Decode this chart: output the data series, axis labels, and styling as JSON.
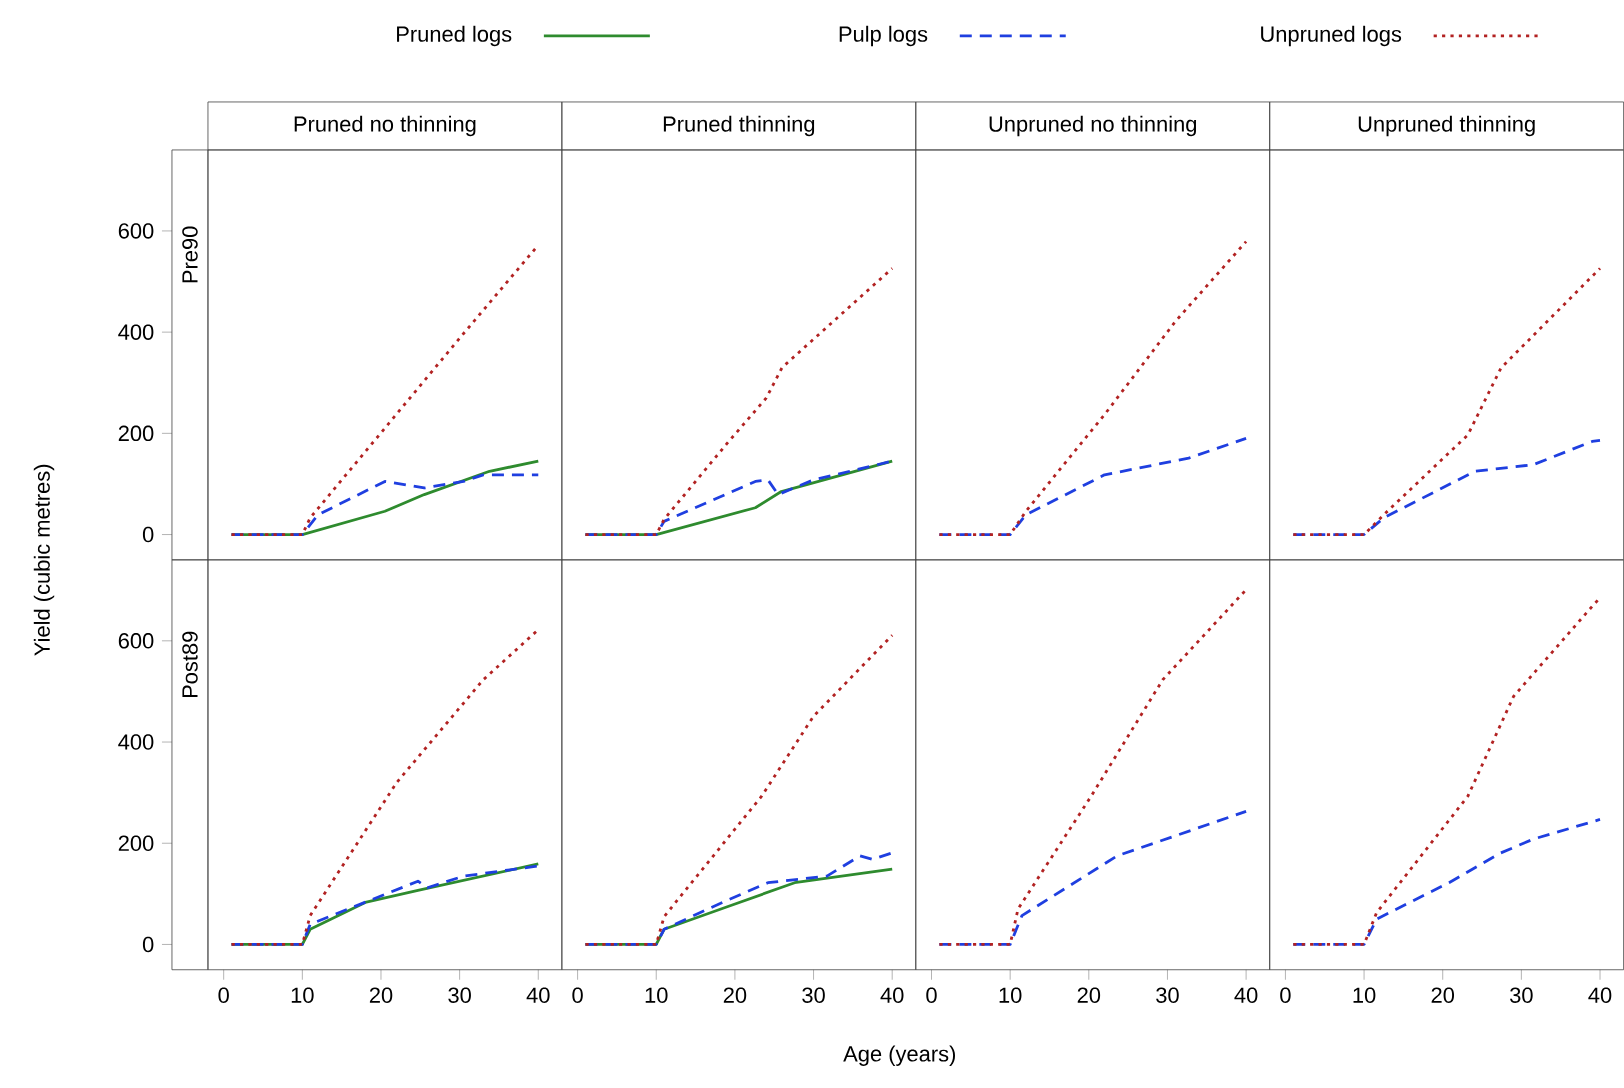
{
  "chart_data": [
    {
      "type": "line",
      "title": "Pruned no thinning",
      "ylabel": "Yield (cubic metres)",
      "annotations": [
        "Pre90"
      ],
      "legend": "top",
      "xlim": [
        -2,
        43
      ],
      "ylim": [
        -50,
        760
      ],
      "xticks": [
        0,
        10,
        20,
        30,
        40
      ],
      "yticks": [
        0,
        200,
        400,
        600
      ],
      "tick_labels": "y",
      "marker": "none",
      "series": [
        {
          "name": "Pruned logs",
          "color": "#2e8b2e",
          "line_style": "solid",
          "x": [
            1,
            10,
            20.5,
            25.5,
            33.8,
            40
          ],
          "values": [
            0,
            0,
            46,
            79,
            125,
            145
          ]
        },
        {
          "name": "Pulp logs",
          "color": "#1f3fe0",
          "line_style": "dashed",
          "x": [
            1,
            10,
            12,
            20.5,
            25.5,
            30.5,
            33,
            40
          ],
          "values": [
            0,
            0,
            39,
            105,
            92,
            105,
            118,
            118
          ]
        },
        {
          "name": "Unpruned logs",
          "color": "#b22222",
          "line_style": "dotted",
          "x": [
            1,
            10,
            11,
            20,
            30,
            40
          ],
          "values": [
            0,
            0,
            33,
            201,
            388,
            572
          ]
        }
      ]
    },
    {
      "type": "line",
      "title": "Pruned thinning",
      "xlim": [
        -2,
        43
      ],
      "ylim": [
        -50,
        760
      ],
      "xticks": [
        0,
        10,
        20,
        30,
        40
      ],
      "yticks": [
        0,
        200,
        400,
        600
      ],
      "tick_labels": false,
      "marker": "none",
      "series": [
        {
          "color": "#2e8b2e",
          "line_style": "solid",
          "x": [
            1,
            10,
            22.6,
            25.9,
            40
          ],
          "values": [
            0,
            0,
            53,
            85,
            145
          ]
        },
        {
          "color": "#1f3fe0",
          "line_style": "dashed",
          "x": [
            1,
            10,
            11,
            22.6,
            24.2,
            25.5,
            30,
            40
          ],
          "values": [
            0,
            0,
            26,
            105,
            108,
            79,
            108,
            145
          ]
        },
        {
          "color": "#b22222",
          "line_style": "dotted",
          "x": [
            1,
            10,
            11,
            19,
            24,
            26,
            40
          ],
          "values": [
            0,
            0,
            30,
            180,
            270,
            330,
            526
          ]
        }
      ]
    },
    {
      "type": "line",
      "title": "Unpruned no thinning",
      "xlim": [
        -2,
        43
      ],
      "ylim": [
        -50,
        760
      ],
      "xticks": [
        0,
        10,
        20,
        30,
        40
      ],
      "yticks": [
        0,
        200,
        400,
        600
      ],
      "tick_labels": false,
      "marker": "none",
      "series": [
        {
          "color": "#1f3fe0",
          "line_style": "dashed",
          "x": [
            1,
            10,
            12,
            22,
            32.7,
            40
          ],
          "values": [
            0,
            0,
            39,
            118,
            151,
            190
          ]
        },
        {
          "color": "#b22222",
          "line_style": "dotted",
          "x": [
            1,
            10,
            12,
            22,
            31,
            40
          ],
          "values": [
            0,
            0,
            46,
            237,
            421,
            579
          ]
        }
      ]
    },
    {
      "type": "line",
      "title": "Unpruned thinning",
      "xlim": [
        -2,
        43
      ],
      "ylim": [
        -50,
        760
      ],
      "xticks": [
        0,
        10,
        20,
        30,
        40
      ],
      "yticks": [
        0,
        200,
        400,
        600
      ],
      "tick_labels": false,
      "marker": "none",
      "series": [
        {
          "color": "#1f3fe0",
          "line_style": "dashed",
          "x": [
            1,
            10,
            12.5,
            24.1,
            31.5,
            39,
            40
          ],
          "values": [
            0,
            0,
            33,
            125,
            138,
            184,
            186
          ]
        },
        {
          "color": "#b22222",
          "line_style": "dotted",
          "x": [
            1,
            10,
            12.5,
            23.2,
            27.4,
            40
          ],
          "values": [
            0,
            0,
            39,
            197,
            329,
            526
          ]
        }
      ]
    },
    {
      "type": "line",
      "annotations": [
        "Post89"
      ],
      "xlim": [
        -2,
        43
      ],
      "ylim": [
        -50,
        760
      ],
      "xticks": [
        0,
        10,
        20,
        30,
        40
      ],
      "yticks": [
        0,
        200,
        400,
        600
      ],
      "marker": "none",
      "series": [
        {
          "color": "#2e8b2e",
          "line_style": "solid",
          "x": [
            1,
            10,
            11,
            18,
            24.7,
            40
          ],
          "values": [
            0,
            0,
            30,
            83,
            107,
            159
          ]
        },
        {
          "color": "#1f3fe0",
          "line_style": "dashed",
          "x": [
            1,
            10,
            11,
            24.7,
            25.9,
            30.5,
            40
          ],
          "values": [
            0,
            0,
            40,
            125,
            112,
            135,
            155
          ]
        },
        {
          "color": "#b22222",
          "line_style": "dotted",
          "x": [
            1,
            10,
            11,
            22,
            33,
            40
          ],
          "values": [
            0,
            0,
            57,
            320,
            523,
            622
          ]
        }
      ]
    },
    {
      "type": "line",
      "xlabel": "Age (years)",
      "xlim": [
        -2,
        43
      ],
      "ylim": [
        -50,
        760
      ],
      "xticks": [
        0,
        10,
        20,
        30,
        40
      ],
      "yticks": [
        0,
        200,
        400,
        600
      ],
      "tick_labels": "x",
      "marker": "none",
      "series": [
        {
          "color": "#2e8b2e",
          "line_style": "solid",
          "x": [
            1,
            10,
            11,
            19.3,
            27.6,
            40
          ],
          "values": [
            0,
            0,
            30,
            76,
            122,
            149
          ]
        },
        {
          "color": "#1f3fe0",
          "line_style": "dashed",
          "x": [
            1,
            10,
            11,
            18.4,
            24.2,
            31.7,
            35.9,
            37.5,
            40
          ],
          "values": [
            0,
            0,
            30,
            83,
            122,
            135,
            175,
            168,
            181
          ]
        },
        {
          "color": "#b22222",
          "line_style": "dotted",
          "x": [
            1,
            10,
            11,
            23.4,
            30,
            40
          ],
          "values": [
            0,
            0,
            55,
            293,
            451,
            611
          ]
        }
      ]
    },
    {
      "type": "line",
      "xlim": [
        -2,
        43
      ],
      "ylim": [
        -50,
        760
      ],
      "xticks": [
        0,
        10,
        20,
        30,
        40
      ],
      "yticks": [
        0,
        200,
        400,
        600
      ],
      "tick_labels": "x",
      "marker": "none",
      "series": [
        {
          "color": "#1f3fe0",
          "line_style": "dashed",
          "x": [
            1,
            10,
            11.5,
            23.6,
            40
          ],
          "values": [
            0,
            0,
            57,
            175,
            263
          ]
        },
        {
          "color": "#b22222",
          "line_style": "dotted",
          "x": [
            1,
            10,
            11,
            20.3,
            29.4,
            40
          ],
          "values": [
            0,
            0,
            70,
            293,
            523,
            701
          ]
        }
      ]
    },
    {
      "type": "line",
      "xlim": [
        -2,
        43
      ],
      "ylim": [
        -50,
        760
      ],
      "xticks": [
        0,
        10,
        20,
        30,
        40
      ],
      "yticks": [
        0,
        200,
        400,
        600
      ],
      "tick_labels": "x",
      "marker": "none",
      "series": [
        {
          "color": "#1f3fe0",
          "line_style": "dashed",
          "x": [
            1,
            10,
            11.6,
            20.8,
            27.4,
            31.5,
            40
          ],
          "values": [
            0,
            0,
            50,
            122,
            181,
            208,
            247
          ]
        },
        {
          "color": "#b22222",
          "line_style": "dotted",
          "x": [
            1,
            10,
            11.6,
            23.2,
            29,
            39,
            40
          ],
          "values": [
            0,
            0,
            63,
            293,
            490,
            668,
            685
          ]
        }
      ]
    }
  ]
}
